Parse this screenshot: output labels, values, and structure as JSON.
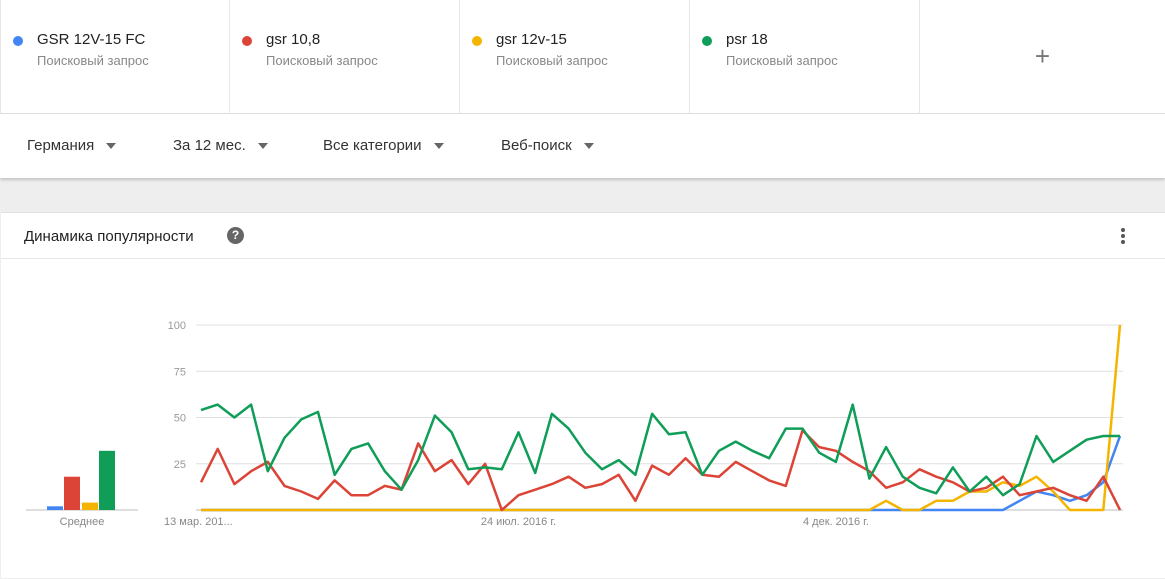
{
  "terms": [
    {
      "name": "GSR 12V-15 FC",
      "sub": "Поисковый запрос",
      "color": "#4285f4"
    },
    {
      "name": "gsr 10,8",
      "sub": "Поисковый запрос",
      "color": "#db4437"
    },
    {
      "name": "gsr 12v-15",
      "sub": "Поисковый запрос",
      "color": "#f4b400"
    },
    {
      "name": "psr 18",
      "sub": "Поисковый запрос",
      "color": "#0f9d58"
    }
  ],
  "add_label": "+",
  "filters": {
    "region": "Германия",
    "period": "За 12 мес.",
    "category": "Все категории",
    "search_type": "Веб-поиск"
  },
  "card": {
    "title": "Динамика популярности",
    "help": "?",
    "average_label": "Среднее"
  },
  "chart_data": {
    "type": "line",
    "title": "Динамика популярности",
    "xlabel": "",
    "ylabel": "",
    "ylim": [
      0,
      100
    ],
    "yticks": [
      "100",
      "75",
      "50",
      "25"
    ],
    "grid": true,
    "x_ticks": [
      {
        "label": "13 мар. 201...",
        "index": 0
      },
      {
        "label": "24 июл. 2016 г.",
        "index": 19
      },
      {
        "label": "4 дек. 2016 г.",
        "index": 38
      }
    ],
    "averages": [
      {
        "name": "GSR 12V-15 FC",
        "value": 2
      },
      {
        "name": "gsr 10,8",
        "value": 18
      },
      {
        "name": "gsr 12v-15",
        "value": 4
      },
      {
        "name": "psr 18",
        "value": 32
      }
    ],
    "series": [
      {
        "name": "GSR 12V-15 FC",
        "color": "#4285f4",
        "values": [
          0,
          0,
          0,
          0,
          0,
          0,
          0,
          0,
          0,
          0,
          0,
          0,
          0,
          0,
          0,
          0,
          0,
          0,
          0,
          0,
          0,
          0,
          0,
          0,
          0,
          0,
          0,
          0,
          0,
          0,
          0,
          0,
          0,
          0,
          0,
          0,
          0,
          0,
          0,
          0,
          0,
          0,
          0,
          0,
          0,
          0,
          0,
          0,
          0,
          5,
          10,
          8,
          5,
          8,
          15,
          40
        ]
      },
      {
        "name": "gsr 10,8",
        "color": "#db4437",
        "values": [
          15,
          33,
          14,
          21,
          26,
          13,
          10,
          6,
          16,
          8,
          8,
          13,
          11,
          36,
          21,
          27,
          14,
          25,
          0,
          8,
          11,
          14,
          18,
          12,
          14,
          19,
          5,
          24,
          19,
          28,
          19,
          18,
          26,
          21,
          16,
          13,
          43,
          34,
          32,
          26,
          21,
          12,
          15,
          22,
          18,
          15,
          10,
          12,
          18,
          8,
          10,
          12,
          8,
          5,
          18,
          0
        ]
      },
      {
        "name": "gsr 12v-15",
        "color": "#f4b400",
        "values": [
          0,
          0,
          0,
          0,
          0,
          0,
          0,
          0,
          0,
          0,
          0,
          0,
          0,
          0,
          0,
          0,
          0,
          0,
          0,
          0,
          0,
          0,
          0,
          0,
          0,
          0,
          0,
          0,
          0,
          0,
          0,
          0,
          0,
          0,
          0,
          0,
          0,
          0,
          0,
          0,
          0,
          5,
          0,
          0,
          5,
          5,
          10,
          10,
          15,
          13,
          18,
          10,
          0,
          0,
          0,
          100
        ]
      },
      {
        "name": "psr 18",
        "color": "#0f9d58",
        "values": [
          54,
          57,
          50,
          57,
          21,
          39,
          49,
          53,
          19,
          33,
          36,
          21,
          11,
          27,
          51,
          42,
          22,
          23,
          22,
          42,
          20,
          52,
          44,
          31,
          22,
          27,
          19,
          52,
          41,
          42,
          19,
          32,
          37,
          32,
          28,
          44,
          44,
          31,
          26,
          57,
          17,
          34,
          18,
          12,
          9,
          23,
          10,
          18,
          8,
          14,
          40,
          26,
          32,
          38,
          40,
          40
        ]
      }
    ]
  }
}
